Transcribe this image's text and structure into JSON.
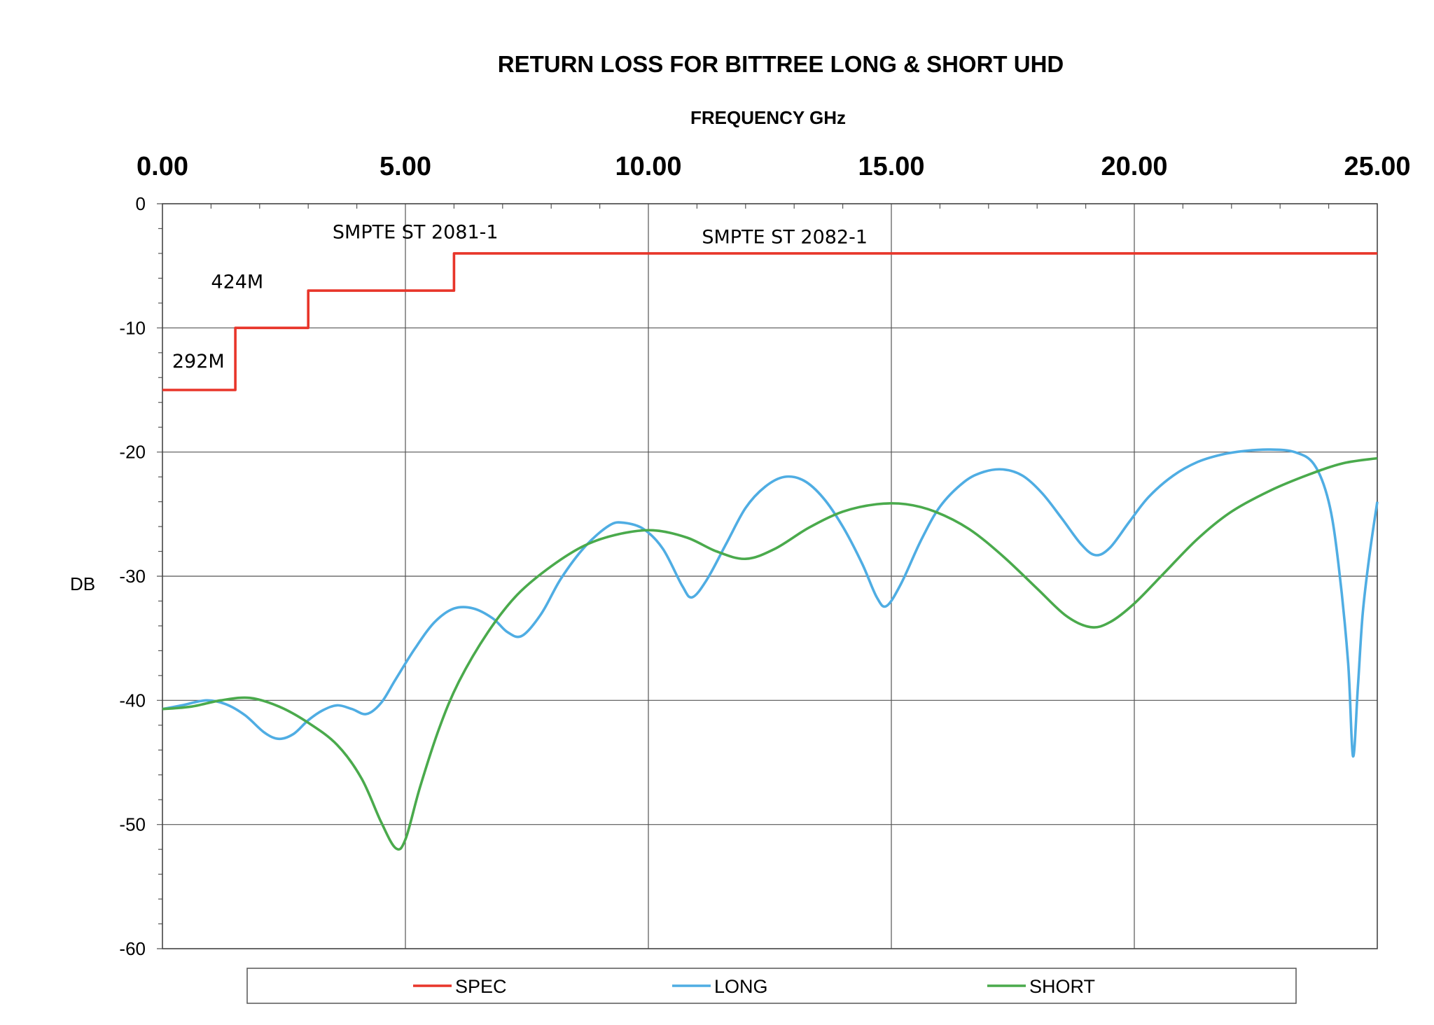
{
  "chart_data": {
    "type": "line",
    "title": "RETURN LOSS FOR BITTREE LONG & SHORT UHD",
    "xlabel": "FREQUENCY GHz",
    "ylabel": "DB",
    "xlim": [
      0,
      25
    ],
    "ylim": [
      -60,
      0
    ],
    "x_ticks": [
      "0.00",
      "5.00",
      "10.00",
      "15.00",
      "20.00",
      "25.00"
    ],
    "y_ticks": [
      "0",
      "-10",
      "-20",
      "-30",
      "-40",
      "-50",
      "-60"
    ],
    "grid": true,
    "x_axis_position": "top",
    "legend_position": "bottom",
    "series": [
      {
        "name": "SPEC",
        "color": "#e8352a",
        "step": true,
        "points": [
          [
            0,
            -15
          ],
          [
            1.5,
            -15
          ],
          [
            1.5,
            -10
          ],
          [
            3,
            -10
          ],
          [
            3,
            -7
          ],
          [
            6,
            -7
          ],
          [
            6,
            -4
          ],
          [
            25,
            -4
          ]
        ]
      },
      {
        "name": "LONG",
        "color": "#4fade3",
        "points": [
          [
            0,
            -40.7
          ],
          [
            0.4,
            -40.4
          ],
          [
            0.9,
            -40.0
          ],
          [
            1.3,
            -40.3
          ],
          [
            1.7,
            -41.2
          ],
          [
            2.1,
            -42.6
          ],
          [
            2.4,
            -43.1
          ],
          [
            2.7,
            -42.7
          ],
          [
            3.0,
            -41.6
          ],
          [
            3.3,
            -40.8
          ],
          [
            3.6,
            -40.4
          ],
          [
            3.9,
            -40.7
          ],
          [
            4.2,
            -41.1
          ],
          [
            4.5,
            -40.2
          ],
          [
            4.8,
            -38.3
          ],
          [
            5.2,
            -35.8
          ],
          [
            5.6,
            -33.7
          ],
          [
            6.0,
            -32.6
          ],
          [
            6.4,
            -32.6
          ],
          [
            6.8,
            -33.4
          ],
          [
            7.1,
            -34.5
          ],
          [
            7.4,
            -34.8
          ],
          [
            7.8,
            -33.0
          ],
          [
            8.2,
            -30.2
          ],
          [
            8.7,
            -27.6
          ],
          [
            9.2,
            -25.9
          ],
          [
            9.5,
            -25.7
          ],
          [
            9.9,
            -26.2
          ],
          [
            10.3,
            -27.8
          ],
          [
            10.7,
            -30.8
          ],
          [
            10.9,
            -31.7
          ],
          [
            11.2,
            -30.3
          ],
          [
            11.6,
            -27.4
          ],
          [
            12.0,
            -24.5
          ],
          [
            12.4,
            -22.8
          ],
          [
            12.8,
            -22.0
          ],
          [
            13.2,
            -22.3
          ],
          [
            13.6,
            -23.7
          ],
          [
            14.0,
            -26.0
          ],
          [
            14.4,
            -29.0
          ],
          [
            14.7,
            -31.7
          ],
          [
            14.9,
            -32.4
          ],
          [
            15.2,
            -30.6
          ],
          [
            15.6,
            -27.2
          ],
          [
            16.0,
            -24.4
          ],
          [
            16.5,
            -22.4
          ],
          [
            16.9,
            -21.6
          ],
          [
            17.3,
            -21.4
          ],
          [
            17.7,
            -21.9
          ],
          [
            18.1,
            -23.3
          ],
          [
            18.5,
            -25.3
          ],
          [
            18.9,
            -27.4
          ],
          [
            19.2,
            -28.3
          ],
          [
            19.5,
            -27.7
          ],
          [
            19.9,
            -25.6
          ],
          [
            20.3,
            -23.6
          ],
          [
            20.8,
            -21.9
          ],
          [
            21.3,
            -20.8
          ],
          [
            21.8,
            -20.2
          ],
          [
            22.3,
            -19.9
          ],
          [
            22.8,
            -19.8
          ],
          [
            23.3,
            -20.0
          ],
          [
            23.7,
            -21.0
          ],
          [
            24.0,
            -24.0
          ],
          [
            24.2,
            -29.0
          ],
          [
            24.4,
            -37.0
          ],
          [
            24.5,
            -44.5
          ],
          [
            24.6,
            -39.0
          ],
          [
            24.7,
            -33.0
          ],
          [
            24.85,
            -28.0
          ],
          [
            25.0,
            -24.0
          ]
        ]
      },
      {
        "name": "SHORT",
        "color": "#4aaa4c",
        "points": [
          [
            0,
            -40.7
          ],
          [
            0.6,
            -40.5
          ],
          [
            1.2,
            -40.0
          ],
          [
            1.8,
            -39.8
          ],
          [
            2.4,
            -40.5
          ],
          [
            3.0,
            -41.8
          ],
          [
            3.6,
            -43.6
          ],
          [
            4.1,
            -46.3
          ],
          [
            4.5,
            -49.8
          ],
          [
            4.8,
            -51.9
          ],
          [
            5.0,
            -51.2
          ],
          [
            5.3,
            -47.0
          ],
          [
            5.7,
            -42.2
          ],
          [
            6.1,
            -38.5
          ],
          [
            6.7,
            -34.5
          ],
          [
            7.3,
            -31.5
          ],
          [
            8.0,
            -29.2
          ],
          [
            8.7,
            -27.5
          ],
          [
            9.4,
            -26.6
          ],
          [
            10.1,
            -26.3
          ],
          [
            10.8,
            -26.9
          ],
          [
            11.4,
            -28.0
          ],
          [
            12.0,
            -28.6
          ],
          [
            12.6,
            -27.8
          ],
          [
            13.3,
            -26.1
          ],
          [
            14.0,
            -24.8
          ],
          [
            14.7,
            -24.2
          ],
          [
            15.3,
            -24.2
          ],
          [
            15.9,
            -24.8
          ],
          [
            16.6,
            -26.2
          ],
          [
            17.3,
            -28.4
          ],
          [
            18.0,
            -31.0
          ],
          [
            18.6,
            -33.2
          ],
          [
            19.1,
            -34.1
          ],
          [
            19.5,
            -33.7
          ],
          [
            20.0,
            -32.2
          ],
          [
            20.6,
            -29.8
          ],
          [
            21.3,
            -27.0
          ],
          [
            22.0,
            -24.8
          ],
          [
            22.8,
            -23.1
          ],
          [
            23.6,
            -21.8
          ],
          [
            24.3,
            -20.9
          ],
          [
            25.0,
            -20.5
          ]
        ]
      }
    ],
    "annotations": [
      {
        "text": "292M",
        "x": 0.2,
        "y": -13.2
      },
      {
        "text": "424M",
        "x": 1.0,
        "y": -6.8
      },
      {
        "text": "SMPTE ST 2081-1",
        "x": 3.5,
        "y": -2.8
      },
      {
        "text": "SMPTE ST 2082-1",
        "x": 11.1,
        "y": -3.2
      }
    ]
  }
}
